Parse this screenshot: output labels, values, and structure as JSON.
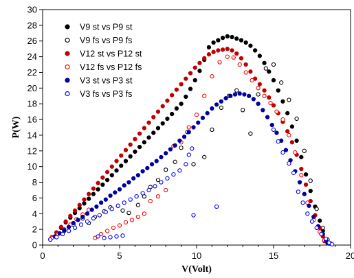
{
  "chart_data": {
    "type": "scatter",
    "title": "",
    "xlabel": "V(Volt)",
    "ylabel": "P(W)",
    "xlim": [
      0,
      20
    ],
    "ylim": [
      0,
      30
    ],
    "x_ticks": [
      "0",
      "5",
      "10",
      "15",
      "20"
    ],
    "y_ticks": [
      "0",
      "2",
      "4",
      "6",
      "8",
      "10",
      "12",
      "14",
      "16",
      "18",
      "20",
      "22",
      "24",
      "26",
      "28",
      "30"
    ],
    "grid": false,
    "legend_position": "top-left",
    "series": [
      {
        "name": "V9 st  vs P9 st",
        "color": "#000000",
        "marker": "filled-circle",
        "points": [
          [
            0.6,
            1.0
          ],
          [
            0.9,
            1.6
          ],
          [
            1.2,
            2.2
          ],
          [
            1.5,
            2.9
          ],
          [
            1.8,
            3.5
          ],
          [
            2.1,
            4.1
          ],
          [
            2.4,
            4.7
          ],
          [
            2.7,
            5.3
          ],
          [
            3.0,
            5.9
          ],
          [
            3.3,
            6.5
          ],
          [
            3.6,
            7.1
          ],
          [
            3.9,
            7.7
          ],
          [
            4.2,
            8.3
          ],
          [
            4.5,
            8.9
          ],
          [
            4.8,
            9.5
          ],
          [
            5.1,
            10.1
          ],
          [
            5.4,
            10.7
          ],
          [
            5.7,
            11.3
          ],
          [
            6.0,
            11.9
          ],
          [
            6.3,
            12.5
          ],
          [
            6.6,
            13.1
          ],
          [
            6.9,
            13.7
          ],
          [
            7.2,
            14.3
          ],
          [
            7.5,
            14.9
          ],
          [
            7.8,
            15.5
          ],
          [
            8.1,
            16.1
          ],
          [
            8.4,
            16.7
          ],
          [
            8.7,
            17.4
          ],
          [
            9.0,
            18.0
          ],
          [
            9.3,
            18.9
          ],
          [
            9.6,
            19.9
          ],
          [
            9.9,
            21.0
          ],
          [
            10.2,
            22.2
          ],
          [
            10.5,
            23.6
          ],
          [
            10.8,
            25.2
          ],
          [
            11.1,
            25.8
          ],
          [
            11.4,
            26.1
          ],
          [
            11.7,
            26.4
          ],
          [
            12.0,
            26.6
          ],
          [
            12.3,
            26.5
          ],
          [
            12.6,
            26.3
          ],
          [
            12.9,
            26.1
          ],
          [
            13.2,
            25.8
          ],
          [
            13.5,
            25.4
          ],
          [
            13.8,
            24.8
          ],
          [
            14.1,
            24.1
          ],
          [
            14.4,
            23.2
          ],
          [
            14.7,
            22.1
          ],
          [
            15.0,
            21.0
          ],
          [
            15.3,
            19.7
          ],
          [
            15.6,
            18.3
          ],
          [
            15.9,
            16.8
          ],
          [
            16.2,
            15.1
          ],
          [
            16.5,
            13.3
          ],
          [
            16.8,
            11.2
          ],
          [
            17.1,
            9.0
          ],
          [
            17.4,
            6.9
          ],
          [
            17.7,
            4.9
          ],
          [
            18.0,
            3.1
          ],
          [
            18.2,
            1.8
          ],
          [
            18.4,
            0.8
          ],
          [
            18.5,
            0.3
          ]
        ]
      },
      {
        "name": "V9 fs vs P9 fs",
        "color": "#000000",
        "marker": "open-circle",
        "points": [
          [
            1.4,
            1.8
          ],
          [
            2.0,
            2.6
          ],
          [
            2.6,
            3.4
          ],
          [
            3.0,
            2.8
          ],
          [
            3.4,
            3.6
          ],
          [
            4.0,
            4.3
          ],
          [
            4.4,
            4.8
          ],
          [
            4.9,
            5.0
          ],
          [
            5.2,
            4.4
          ],
          [
            5.6,
            4.1
          ],
          [
            6.2,
            5.1
          ],
          [
            6.6,
            6.2
          ],
          [
            7.0,
            7.4
          ],
          [
            7.5,
            8.3
          ],
          [
            8.0,
            9.6
          ],
          [
            8.6,
            10.6
          ],
          [
            9.0,
            12.4
          ],
          [
            9.4,
            14.4
          ],
          [
            9.8,
            10.3
          ],
          [
            10.5,
            11.2
          ],
          [
            11.0,
            14.7
          ],
          [
            11.6,
            17.5
          ],
          [
            12.1,
            19.0
          ],
          [
            12.6,
            19.7
          ],
          [
            13.0,
            17.2
          ],
          [
            13.5,
            14.2
          ],
          [
            14.0,
            19.2
          ],
          [
            14.5,
            22.5
          ],
          [
            15.0,
            23.0
          ],
          [
            15.5,
            20.7
          ],
          [
            16.0,
            18.5
          ],
          [
            16.5,
            16.1
          ],
          [
            17.0,
            12.0
          ],
          [
            17.4,
            8.2
          ],
          [
            17.8,
            4.6
          ],
          [
            18.2,
            2.2
          ],
          [
            18.5,
            0.7
          ],
          [
            18.7,
            0.2
          ]
        ]
      },
      {
        "name": "V12 st vs P12 st",
        "color": "#c00000",
        "marker": "filled-circle",
        "points": [
          [
            0.6,
            1.0
          ],
          [
            0.9,
            1.6
          ],
          [
            1.2,
            2.3
          ],
          [
            1.5,
            3.0
          ],
          [
            1.8,
            3.7
          ],
          [
            2.1,
            4.4
          ],
          [
            2.4,
            5.1
          ],
          [
            2.7,
            5.8
          ],
          [
            3.0,
            6.5
          ],
          [
            3.3,
            7.2
          ],
          [
            3.6,
            7.9
          ],
          [
            3.9,
            8.6
          ],
          [
            4.2,
            9.3
          ],
          [
            4.5,
            10.0
          ],
          [
            4.8,
            10.7
          ],
          [
            5.1,
            11.4
          ],
          [
            5.4,
            12.1
          ],
          [
            5.7,
            12.8
          ],
          [
            6.0,
            13.5
          ],
          [
            6.3,
            14.2
          ],
          [
            6.6,
            14.9
          ],
          [
            6.9,
            15.6
          ],
          [
            7.2,
            16.3
          ],
          [
            7.5,
            17.0
          ],
          [
            7.8,
            17.7
          ],
          [
            8.1,
            18.4
          ],
          [
            8.4,
            19.1
          ],
          [
            8.7,
            19.8
          ],
          [
            9.0,
            20.5
          ],
          [
            9.3,
            21.2
          ],
          [
            9.6,
            21.9
          ],
          [
            9.9,
            22.6
          ],
          [
            10.2,
            23.2
          ],
          [
            10.5,
            23.8
          ],
          [
            10.8,
            24.3
          ],
          [
            11.1,
            24.6
          ],
          [
            11.4,
            24.8
          ],
          [
            11.7,
            24.9
          ],
          [
            12.0,
            25.0
          ],
          [
            12.3,
            24.8
          ],
          [
            12.6,
            24.4
          ],
          [
            12.9,
            23.8
          ],
          [
            13.2,
            23.0
          ],
          [
            13.5,
            22.1
          ],
          [
            13.8,
            21.2
          ],
          [
            14.1,
            20.5
          ],
          [
            14.4,
            19.7
          ],
          [
            14.7,
            18.8
          ],
          [
            15.0,
            17.8
          ],
          [
            15.3,
            16.8
          ],
          [
            15.6,
            15.7
          ],
          [
            15.9,
            14.5
          ],
          [
            16.2,
            13.1
          ],
          [
            16.5,
            11.5
          ],
          [
            16.8,
            9.7
          ],
          [
            17.1,
            7.7
          ],
          [
            17.4,
            5.6
          ],
          [
            17.7,
            3.8
          ],
          [
            18.0,
            2.2
          ],
          [
            18.2,
            1.1
          ],
          [
            18.3,
            0.5
          ]
        ]
      },
      {
        "name": "V12 fs vs P12 fs",
        "color": "#ff0000",
        "marker": "open-circle",
        "points": [
          [
            0.6,
            0.9
          ],
          [
            1.0,
            1.4
          ],
          [
            1.4,
            2.0
          ],
          [
            1.8,
            2.6
          ],
          [
            2.2,
            3.3
          ],
          [
            2.6,
            3.9
          ],
          [
            3.0,
            4.5
          ],
          [
            3.4,
            0.9
          ],
          [
            3.8,
            1.4
          ],
          [
            4.2,
            1.8
          ],
          [
            4.6,
            2.2
          ],
          [
            5.0,
            2.5
          ],
          [
            5.4,
            2.9
          ],
          [
            5.8,
            3.2
          ],
          [
            6.2,
            3.6
          ],
          [
            6.6,
            4.0
          ],
          [
            7.0,
            5.6
          ],
          [
            7.5,
            6.2
          ],
          [
            8.0,
            7.0
          ],
          [
            8.5,
            12.6
          ],
          [
            9.0,
            13.1
          ],
          [
            9.5,
            15.0
          ],
          [
            10.0,
            16.6
          ],
          [
            10.5,
            19.0
          ],
          [
            11.0,
            21.5
          ],
          [
            11.5,
            23.3
          ],
          [
            12.0,
            24.0
          ],
          [
            12.4,
            23.9
          ],
          [
            12.8,
            23.0
          ],
          [
            13.2,
            22.0
          ],
          [
            13.6,
            21.0
          ],
          [
            14.0,
            20.0
          ],
          [
            14.4,
            19.0
          ],
          [
            14.8,
            18.1
          ],
          [
            15.2,
            17.0
          ],
          [
            15.6,
            16.0
          ],
          [
            16.0,
            14.0
          ],
          [
            16.4,
            11.8
          ],
          [
            16.8,
            8.9
          ],
          [
            17.2,
            5.4
          ],
          [
            17.6,
            3.2
          ],
          [
            18.0,
            1.7
          ],
          [
            18.3,
            0.6
          ]
        ]
      },
      {
        "name": "V3 st vs P3 st",
        "color": "#0000a0",
        "marker": "filled-circle",
        "points": [
          [
            0.5,
            0.7
          ],
          [
            0.8,
            1.1
          ],
          [
            1.1,
            1.5
          ],
          [
            1.4,
            1.9
          ],
          [
            1.7,
            2.3
          ],
          [
            2.0,
            2.8
          ],
          [
            2.3,
            3.2
          ],
          [
            2.6,
            3.6
          ],
          [
            2.9,
            4.0
          ],
          [
            3.2,
            4.5
          ],
          [
            3.5,
            4.9
          ],
          [
            3.8,
            5.4
          ],
          [
            4.1,
            5.8
          ],
          [
            4.4,
            6.3
          ],
          [
            4.7,
            6.7
          ],
          [
            5.0,
            7.1
          ],
          [
            5.3,
            7.6
          ],
          [
            5.6,
            8.0
          ],
          [
            5.9,
            8.5
          ],
          [
            6.2,
            8.9
          ],
          [
            6.5,
            9.4
          ],
          [
            6.8,
            9.8
          ],
          [
            7.1,
            10.3
          ],
          [
            7.4,
            10.7
          ],
          [
            7.7,
            11.2
          ],
          [
            8.0,
            11.7
          ],
          [
            8.3,
            12.2
          ],
          [
            8.6,
            12.7
          ],
          [
            8.9,
            13.3
          ],
          [
            9.2,
            13.8
          ],
          [
            9.5,
            14.4
          ],
          [
            9.8,
            15.0
          ],
          [
            10.1,
            15.6
          ],
          [
            10.4,
            16.2
          ],
          [
            10.7,
            16.8
          ],
          [
            11.0,
            17.4
          ],
          [
            11.3,
            17.9
          ],
          [
            11.6,
            18.3
          ],
          [
            11.9,
            18.7
          ],
          [
            12.2,
            19.0
          ],
          [
            12.5,
            19.2
          ],
          [
            12.8,
            19.3
          ],
          [
            13.1,
            19.2
          ],
          [
            13.4,
            19.0
          ],
          [
            13.7,
            18.6
          ],
          [
            14.0,
            18.0
          ],
          [
            14.3,
            17.2
          ],
          [
            14.6,
            16.3
          ],
          [
            14.9,
            15.3
          ],
          [
            15.2,
            14.3
          ],
          [
            15.5,
            13.3
          ],
          [
            15.8,
            12.1
          ],
          [
            16.1,
            10.8
          ],
          [
            16.4,
            9.4
          ],
          [
            16.7,
            8.0
          ],
          [
            17.0,
            6.5
          ],
          [
            17.3,
            5.0
          ],
          [
            17.6,
            3.6
          ],
          [
            17.9,
            2.4
          ],
          [
            18.2,
            1.4
          ],
          [
            18.4,
            0.6
          ],
          [
            18.6,
            0.2
          ]
        ]
      },
      {
        "name": "V3 fs vs P3 fs",
        "color": "#0000ff",
        "marker": "open-circle",
        "points": [
          [
            0.5,
            0.7
          ],
          [
            0.9,
            1.0
          ],
          [
            1.3,
            1.4
          ],
          [
            1.7,
            1.8
          ],
          [
            2.1,
            2.2
          ],
          [
            2.5,
            2.6
          ],
          [
            2.9,
            3.0
          ],
          [
            3.3,
            3.4
          ],
          [
            3.7,
            3.8
          ],
          [
            4.1,
            4.2
          ],
          [
            4.5,
            4.6
          ],
          [
            4.9,
            5.0
          ],
          [
            5.3,
            5.4
          ],
          [
            5.7,
            5.8
          ],
          [
            6.1,
            6.2
          ],
          [
            6.5,
            6.6
          ],
          [
            6.9,
            7.0
          ],
          [
            7.3,
            7.5
          ],
          [
            7.7,
            8.0
          ],
          [
            8.1,
            8.5
          ],
          [
            8.5,
            9.0
          ],
          [
            8.9,
            9.5
          ],
          [
            9.3,
            10.3
          ],
          [
            9.5,
            11.5
          ],
          [
            9.7,
            12.3
          ],
          [
            3.6,
            1.1
          ],
          [
            4.0,
            0.9
          ],
          [
            4.4,
            1.0
          ],
          [
            4.8,
            1.1
          ],
          [
            5.2,
            1.2
          ],
          [
            9.8,
            3.8
          ],
          [
            11.3,
            4.9
          ],
          [
            15.0,
            14.7
          ],
          [
            15.3,
            13.2
          ],
          [
            15.6,
            11.8
          ],
          [
            16.0,
            10.4
          ],
          [
            16.3,
            9.2
          ],
          [
            16.6,
            6.8
          ],
          [
            16.9,
            5.4
          ],
          [
            17.2,
            4.0
          ],
          [
            17.5,
            3.0
          ],
          [
            17.8,
            2.2
          ],
          [
            18.1,
            1.4
          ],
          [
            18.4,
            0.8
          ],
          [
            18.6,
            0.3
          ],
          [
            18.8,
            0.1
          ]
        ]
      }
    ]
  }
}
